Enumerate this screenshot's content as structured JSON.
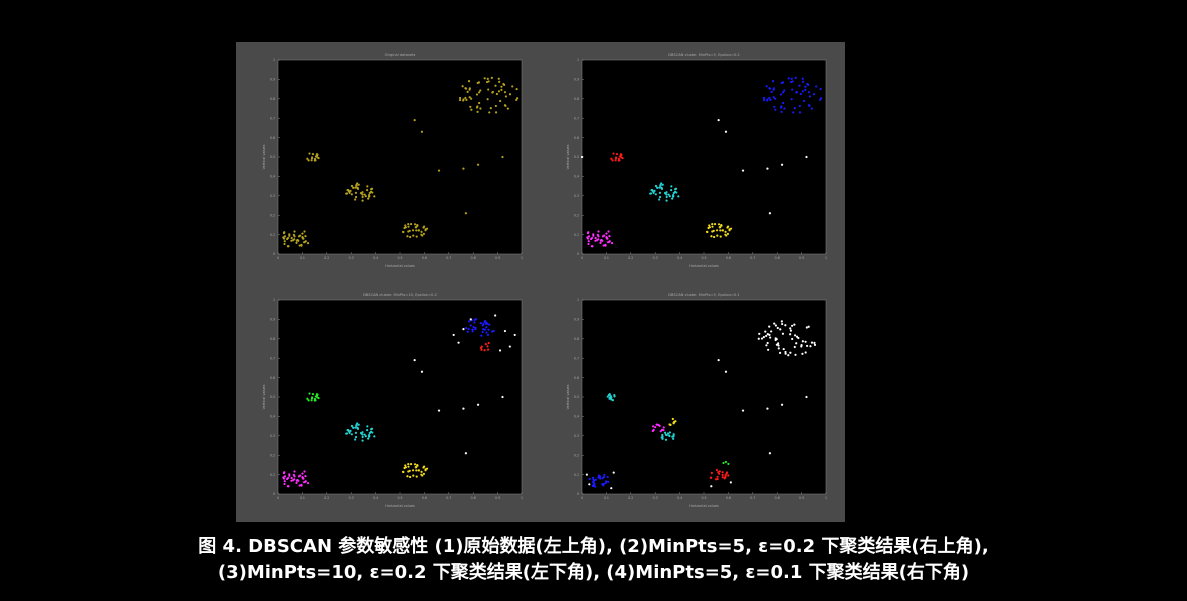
{
  "caption": {
    "line1": "图 4. DBSCAN 参数敏感性 (1)原始数据(左上角), (2)MinPts=5, ε=0.2 下聚类结果(右上角),",
    "line2": "(3)MinPts=10, ε=0.2 下聚类结果(左下角), (4)MinPts=5, ε=0.1 下聚类结果(右下角)"
  },
  "colors": {
    "figure_bg": "#4a4a4a",
    "axes_bg": "#000000",
    "noise": "#ffffff",
    "olive": "#b5a21c",
    "red": "#ff1a1a",
    "blue": "#1a1aff",
    "cyan": "#22d3d3",
    "magenta": "#ff2cff",
    "yellow": "#f2dc1a",
    "green": "#22ee22"
  },
  "chart_data": [
    {
      "type": "scatter",
      "title": "Original datasets",
      "xlabel": "Horizontal values",
      "ylabel": "Vertical values",
      "xlim": [
        0,
        1
      ],
      "ylim": [
        0,
        1
      ],
      "xticks": [
        "0",
        "0.1",
        "0.2",
        "0.3",
        "0.4",
        "0.5",
        "0.6",
        "0.7",
        "0.8",
        "0.9",
        "1"
      ],
      "yticks": [
        "0",
        "0.1",
        "0.2",
        "0.3",
        "0.4",
        "0.5",
        "0.6",
        "0.7",
        "0.8",
        "0.9",
        "1"
      ],
      "blobs": [
        {
          "cx": 0.07,
          "cy": 0.08,
          "r": 0.055,
          "n": 40,
          "color": "olive"
        },
        {
          "cx": 0.14,
          "cy": 0.5,
          "r": 0.025,
          "n": 16,
          "color": "olive"
        },
        {
          "cx": 0.34,
          "cy": 0.32,
          "r": 0.055,
          "n": 40,
          "color": "olive"
        },
        {
          "cx": 0.56,
          "cy": 0.12,
          "r": 0.05,
          "n": 32,
          "color": "olive"
        },
        {
          "cx": 0.86,
          "cy": 0.82,
          "r": 0.11,
          "n": 60,
          "color": "olive"
        }
      ],
      "points": [
        {
          "x": 0.56,
          "y": 0.69,
          "color": "olive"
        },
        {
          "x": 0.59,
          "y": 0.63,
          "color": "olive"
        },
        {
          "x": 0.66,
          "y": 0.43,
          "color": "olive"
        },
        {
          "x": 0.76,
          "y": 0.44,
          "color": "olive"
        },
        {
          "x": 0.82,
          "y": 0.46,
          "color": "olive"
        },
        {
          "x": 0.92,
          "y": 0.5,
          "color": "olive"
        },
        {
          "x": 0.77,
          "y": 0.21,
          "color": "olive"
        }
      ]
    },
    {
      "type": "scatter",
      "title": "DBSCAN cluster. MinPts=5, Epsilon=0.2",
      "xlabel": "Horizontal values",
      "ylabel": "Vertical values",
      "xlim": [
        0,
        1
      ],
      "ylim": [
        0,
        1
      ],
      "xticks": [
        "0",
        "0.1",
        "0.2",
        "0.3",
        "0.4",
        "0.5",
        "0.6",
        "0.7",
        "0.8",
        "0.9",
        "1"
      ],
      "yticks": [
        "0",
        "0.1",
        "0.2",
        "0.3",
        "0.4",
        "0.5",
        "0.6",
        "0.7",
        "0.8",
        "0.9",
        "1"
      ],
      "blobs": [
        {
          "cx": 0.07,
          "cy": 0.08,
          "r": 0.055,
          "n": 40,
          "color": "magenta"
        },
        {
          "cx": 0.14,
          "cy": 0.5,
          "r": 0.025,
          "n": 16,
          "color": "red"
        },
        {
          "cx": 0.34,
          "cy": 0.32,
          "r": 0.055,
          "n": 40,
          "color": "cyan"
        },
        {
          "cx": 0.56,
          "cy": 0.12,
          "r": 0.05,
          "n": 32,
          "color": "yellow"
        },
        {
          "cx": 0.86,
          "cy": 0.82,
          "r": 0.11,
          "n": 60,
          "color": "blue"
        }
      ],
      "points": [
        {
          "x": 0.56,
          "y": 0.69,
          "color": "noise"
        },
        {
          "x": 0.59,
          "y": 0.63,
          "color": "noise"
        },
        {
          "x": 0.66,
          "y": 0.43,
          "color": "noise"
        },
        {
          "x": 0.76,
          "y": 0.44,
          "color": "noise"
        },
        {
          "x": 0.82,
          "y": 0.46,
          "color": "noise"
        },
        {
          "x": 0.92,
          "y": 0.5,
          "color": "noise"
        },
        {
          "x": 0.77,
          "y": 0.21,
          "color": "noise"
        },
        {
          "x": 0.0,
          "y": 0.5,
          "color": "noise"
        }
      ]
    },
    {
      "type": "scatter",
      "title": "DBSCAN cluster. MinPts=10, Epsilon=0.2",
      "xlabel": "Horizontal values",
      "ylabel": "Vertical values",
      "xlim": [
        0,
        1
      ],
      "ylim": [
        0,
        1
      ],
      "xticks": [
        "0",
        "0.1",
        "0.2",
        "0.3",
        "0.4",
        "0.5",
        "0.6",
        "0.7",
        "0.8",
        "0.9",
        "1"
      ],
      "yticks": [
        "0",
        "0.1",
        "0.2",
        "0.3",
        "0.4",
        "0.5",
        "0.6",
        "0.7",
        "0.8",
        "0.9",
        "1"
      ],
      "blobs": [
        {
          "cx": 0.07,
          "cy": 0.08,
          "r": 0.055,
          "n": 40,
          "color": "magenta"
        },
        {
          "cx": 0.14,
          "cy": 0.5,
          "r": 0.025,
          "n": 16,
          "color": "green"
        },
        {
          "cx": 0.34,
          "cy": 0.32,
          "r": 0.055,
          "n": 40,
          "color": "cyan"
        },
        {
          "cx": 0.56,
          "cy": 0.12,
          "r": 0.05,
          "n": 32,
          "color": "yellow"
        },
        {
          "cx": 0.83,
          "cy": 0.86,
          "r": 0.055,
          "n": 34,
          "color": "blue"
        },
        {
          "cx": 0.85,
          "cy": 0.76,
          "r": 0.025,
          "n": 8,
          "color": "red"
        }
      ],
      "points": [
        {
          "x": 0.56,
          "y": 0.69,
          "color": "noise"
        },
        {
          "x": 0.59,
          "y": 0.63,
          "color": "noise"
        },
        {
          "x": 0.66,
          "y": 0.43,
          "color": "noise"
        },
        {
          "x": 0.76,
          "y": 0.44,
          "color": "noise"
        },
        {
          "x": 0.82,
          "y": 0.46,
          "color": "noise"
        },
        {
          "x": 0.92,
          "y": 0.5,
          "color": "noise"
        },
        {
          "x": 0.77,
          "y": 0.21,
          "color": "noise"
        },
        {
          "x": 0.74,
          "y": 0.78,
          "color": "noise"
        },
        {
          "x": 0.76,
          "y": 0.85,
          "color": "noise"
        },
        {
          "x": 0.79,
          "y": 0.9,
          "color": "noise"
        },
        {
          "x": 0.93,
          "y": 0.84,
          "color": "noise"
        },
        {
          "x": 0.95,
          "y": 0.76,
          "color": "noise"
        },
        {
          "x": 0.91,
          "y": 0.74,
          "color": "noise"
        },
        {
          "x": 0.72,
          "y": 0.82,
          "color": "noise"
        },
        {
          "x": 0.97,
          "y": 0.82,
          "color": "noise"
        },
        {
          "x": 0.89,
          "y": 0.92,
          "color": "noise"
        }
      ]
    },
    {
      "type": "scatter",
      "title": "DBSCAN cluster. MinPts=5, Epsilon=0.1",
      "xlabel": "Horizontal values",
      "ylabel": "Vertical values",
      "xlim": [
        0,
        1
      ],
      "ylim": [
        0,
        1
      ],
      "xticks": [
        "0",
        "0.1",
        "0.2",
        "0.3",
        "0.4",
        "0.5",
        "0.6",
        "0.7",
        "0.8",
        "0.9",
        "1"
      ],
      "yticks": [
        "0",
        "0.1",
        "0.2",
        "0.3",
        "0.4",
        "0.5",
        "0.6",
        "0.7",
        "0.8",
        "0.9",
        "1"
      ],
      "blobs": [
        {
          "cx": 0.07,
          "cy": 0.07,
          "r": 0.04,
          "n": 28,
          "color": "blue"
        },
        {
          "cx": 0.12,
          "cy": 0.5,
          "r": 0.02,
          "n": 14,
          "color": "cyan"
        },
        {
          "cx": 0.31,
          "cy": 0.34,
          "r": 0.025,
          "n": 12,
          "color": "magenta"
        },
        {
          "cx": 0.35,
          "cy": 0.3,
          "r": 0.03,
          "n": 18,
          "color": "cyan"
        },
        {
          "cx": 0.37,
          "cy": 0.37,
          "r": 0.02,
          "n": 8,
          "color": "yellow"
        },
        {
          "cx": 0.56,
          "cy": 0.1,
          "r": 0.035,
          "n": 20,
          "color": "red"
        },
        {
          "cx": 0.84,
          "cy": 0.8,
          "r": 0.11,
          "n": 60,
          "color": "noise"
        }
      ],
      "points": [
        {
          "x": 0.58,
          "y": 0.16,
          "color": "green"
        },
        {
          "x": 0.6,
          "y": 0.155,
          "color": "green"
        },
        {
          "x": 0.59,
          "y": 0.165,
          "color": "green"
        },
        {
          "x": 0.02,
          "y": 0.1,
          "color": "noise"
        },
        {
          "x": 0.03,
          "y": 0.05,
          "color": "noise"
        },
        {
          "x": 0.12,
          "y": 0.03,
          "color": "noise"
        },
        {
          "x": 0.13,
          "y": 0.11,
          "color": "noise"
        },
        {
          "x": 0.53,
          "y": 0.04,
          "color": "noise"
        },
        {
          "x": 0.61,
          "y": 0.06,
          "color": "noise"
        },
        {
          "x": 0.56,
          "y": 0.69,
          "color": "noise"
        },
        {
          "x": 0.59,
          "y": 0.63,
          "color": "noise"
        },
        {
          "x": 0.66,
          "y": 0.43,
          "color": "noise"
        },
        {
          "x": 0.76,
          "y": 0.44,
          "color": "noise"
        },
        {
          "x": 0.82,
          "y": 0.46,
          "color": "noise"
        },
        {
          "x": 0.92,
          "y": 0.5,
          "color": "noise"
        },
        {
          "x": 0.77,
          "y": 0.21,
          "color": "noise"
        }
      ]
    }
  ]
}
